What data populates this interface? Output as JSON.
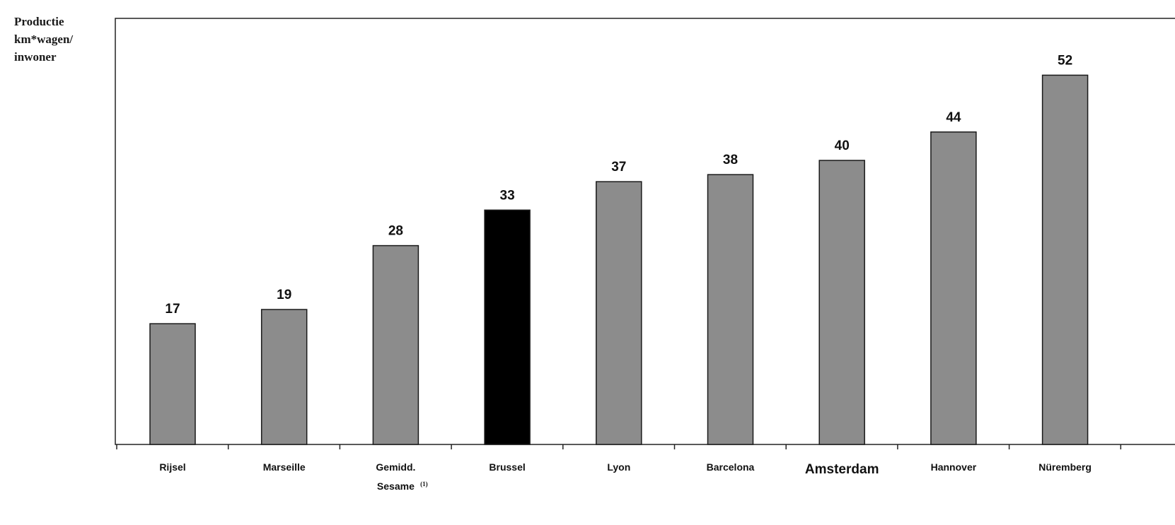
{
  "chart_data": {
    "type": "bar",
    "ylabel": [
      "Productie",
      "km*wagen/",
      "inwoner"
    ],
    "categories": [
      [
        "Rijsel"
      ],
      [
        "Marseille"
      ],
      [
        "Gemidd.",
        "Sesame"
      ],
      [
        "Brussel"
      ],
      [
        "Lyon"
      ],
      [
        "Barcelona"
      ],
      [
        "Amsterdam"
      ],
      [
        "Hannover"
      ],
      [
        "Nüremberg"
      ]
    ],
    "footnote": "(1)",
    "values": [
      17,
      19,
      28,
      33,
      37,
      38,
      40,
      44,
      52
    ],
    "highlight_index": 3,
    "ylim": [
      0,
      60
    ],
    "grid": false,
    "colors": {
      "bar": "#8c8c8c",
      "highlight": "#000000",
      "bar_border": "#1a1a1a",
      "frame": "#222222"
    }
  }
}
